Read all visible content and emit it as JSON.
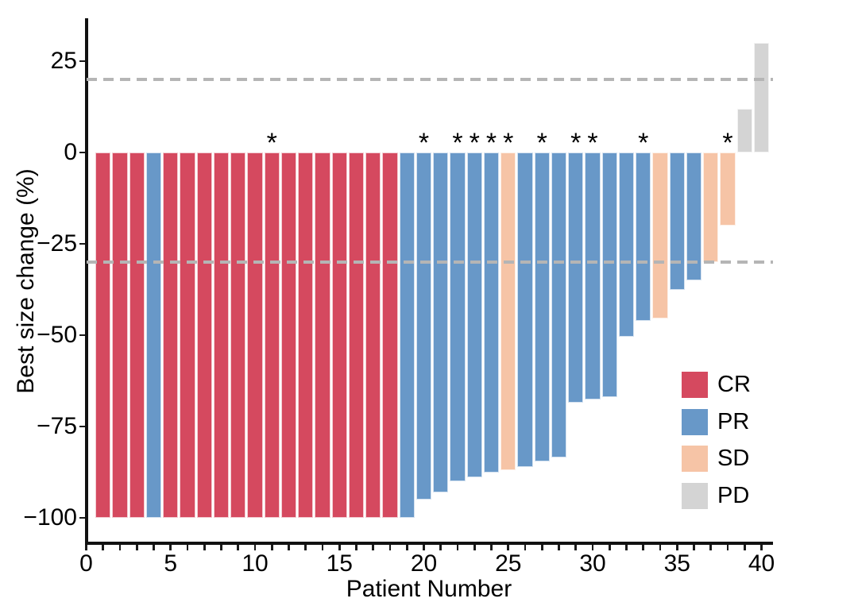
{
  "chart_data": {
    "type": "bar",
    "subtype": "waterfall",
    "title": "",
    "xlabel": "Patient Number",
    "ylabel": "Best size change (%)",
    "xlim": [
      -0.6,
      40.6
    ],
    "ylim": [
      -107,
      37
    ],
    "grid": "off",
    "x_ticks": [
      {
        "v": 0,
        "label": "0"
      },
      {
        "v": 5,
        "label": "5"
      },
      {
        "v": 10,
        "label": "10"
      },
      {
        "v": 15,
        "label": "15"
      },
      {
        "v": 20,
        "label": "20"
      },
      {
        "v": 25,
        "label": "25"
      },
      {
        "v": 30,
        "label": "30"
      },
      {
        "v": 35,
        "label": "35"
      },
      {
        "v": 40,
        "label": "40"
      }
    ],
    "x_minor_tick_every": 1,
    "y_ticks": [
      {
        "v": 25,
        "label": "25"
      },
      {
        "v": 0,
        "label": "0"
      },
      {
        "v": -25,
        "label": "−25"
      },
      {
        "v": -50,
        "label": "−50"
      },
      {
        "v": -75,
        "label": "−75"
      },
      {
        "v": -100,
        "label": "−100"
      }
    ],
    "reference_lines": [
      {
        "y": 20,
        "style": "dashed",
        "color": "#b5b5b5"
      },
      {
        "y": -30,
        "style": "dashed",
        "color": "#b5b5b5"
      }
    ],
    "annotation_marker": "*",
    "colors": {
      "CR": "#d5495f",
      "PR": "#6898c8",
      "SD": "#f6c4a6",
      "PD": "#d4d4d4"
    },
    "legend": {
      "position": "inside-right",
      "entries": [
        {
          "label": "CR",
          "color": "#d5495f"
        },
        {
          "label": "PR",
          "color": "#6898c8"
        },
        {
          "label": "SD",
          "color": "#f6c4a6"
        },
        {
          "label": "PD",
          "color": "#d4d4d4"
        }
      ]
    },
    "patients": [
      {
        "n": 1,
        "value": -100,
        "response": "CR",
        "star": false
      },
      {
        "n": 2,
        "value": -100,
        "response": "CR",
        "star": false
      },
      {
        "n": 3,
        "value": -100,
        "response": "CR",
        "star": false
      },
      {
        "n": 4,
        "value": -100,
        "response": "PR",
        "star": false
      },
      {
        "n": 5,
        "value": -100,
        "response": "CR",
        "star": false
      },
      {
        "n": 6,
        "value": -100,
        "response": "CR",
        "star": false
      },
      {
        "n": 7,
        "value": -100,
        "response": "CR",
        "star": false
      },
      {
        "n": 8,
        "value": -100,
        "response": "CR",
        "star": false
      },
      {
        "n": 9,
        "value": -100,
        "response": "CR",
        "star": false
      },
      {
        "n": 10,
        "value": -100,
        "response": "CR",
        "star": false
      },
      {
        "n": 11,
        "value": -100,
        "response": "CR",
        "star": true
      },
      {
        "n": 12,
        "value": -100,
        "response": "CR",
        "star": false
      },
      {
        "n": 13,
        "value": -100,
        "response": "CR",
        "star": false
      },
      {
        "n": 14,
        "value": -100,
        "response": "CR",
        "star": false
      },
      {
        "n": 15,
        "value": -100,
        "response": "CR",
        "star": false
      },
      {
        "n": 16,
        "value": -100,
        "response": "CR",
        "star": false
      },
      {
        "n": 17,
        "value": -100,
        "response": "CR",
        "star": false
      },
      {
        "n": 18,
        "value": -100,
        "response": "CR",
        "star": false
      },
      {
        "n": 19,
        "value": -100,
        "response": "PR",
        "star": false
      },
      {
        "n": 20,
        "value": -95,
        "response": "PR",
        "star": true
      },
      {
        "n": 21,
        "value": -93,
        "response": "PR",
        "star": false
      },
      {
        "n": 22,
        "value": -90,
        "response": "PR",
        "star": true
      },
      {
        "n": 23,
        "value": -89,
        "response": "PR",
        "star": true
      },
      {
        "n": 24,
        "value": -87.5,
        "response": "PR",
        "star": true
      },
      {
        "n": 25,
        "value": -87,
        "response": "SD",
        "star": true
      },
      {
        "n": 26,
        "value": -86,
        "response": "PR",
        "star": false
      },
      {
        "n": 27,
        "value": -84.5,
        "response": "PR",
        "star": true
      },
      {
        "n": 28,
        "value": -83.5,
        "response": "PR",
        "star": false
      },
      {
        "n": 29,
        "value": -68.5,
        "response": "PR",
        "star": true
      },
      {
        "n": 30,
        "value": -67.5,
        "response": "PR",
        "star": true
      },
      {
        "n": 31,
        "value": -67,
        "response": "PR",
        "star": false
      },
      {
        "n": 32,
        "value": -50.5,
        "response": "PR",
        "star": false
      },
      {
        "n": 33,
        "value": -46,
        "response": "PR",
        "star": true
      },
      {
        "n": 34,
        "value": -45.5,
        "response": "SD",
        "star": false
      },
      {
        "n": 35,
        "value": -37.5,
        "response": "PR",
        "star": false
      },
      {
        "n": 36,
        "value": -35,
        "response": "PR",
        "star": false
      },
      {
        "n": 37,
        "value": -30,
        "response": "SD",
        "star": false
      },
      {
        "n": 38,
        "value": -20,
        "response": "SD",
        "star": true
      },
      {
        "n": 39,
        "value": 12,
        "response": "PD",
        "star": false
      },
      {
        "n": 40,
        "value": 30,
        "response": "PD",
        "star": false
      }
    ]
  }
}
